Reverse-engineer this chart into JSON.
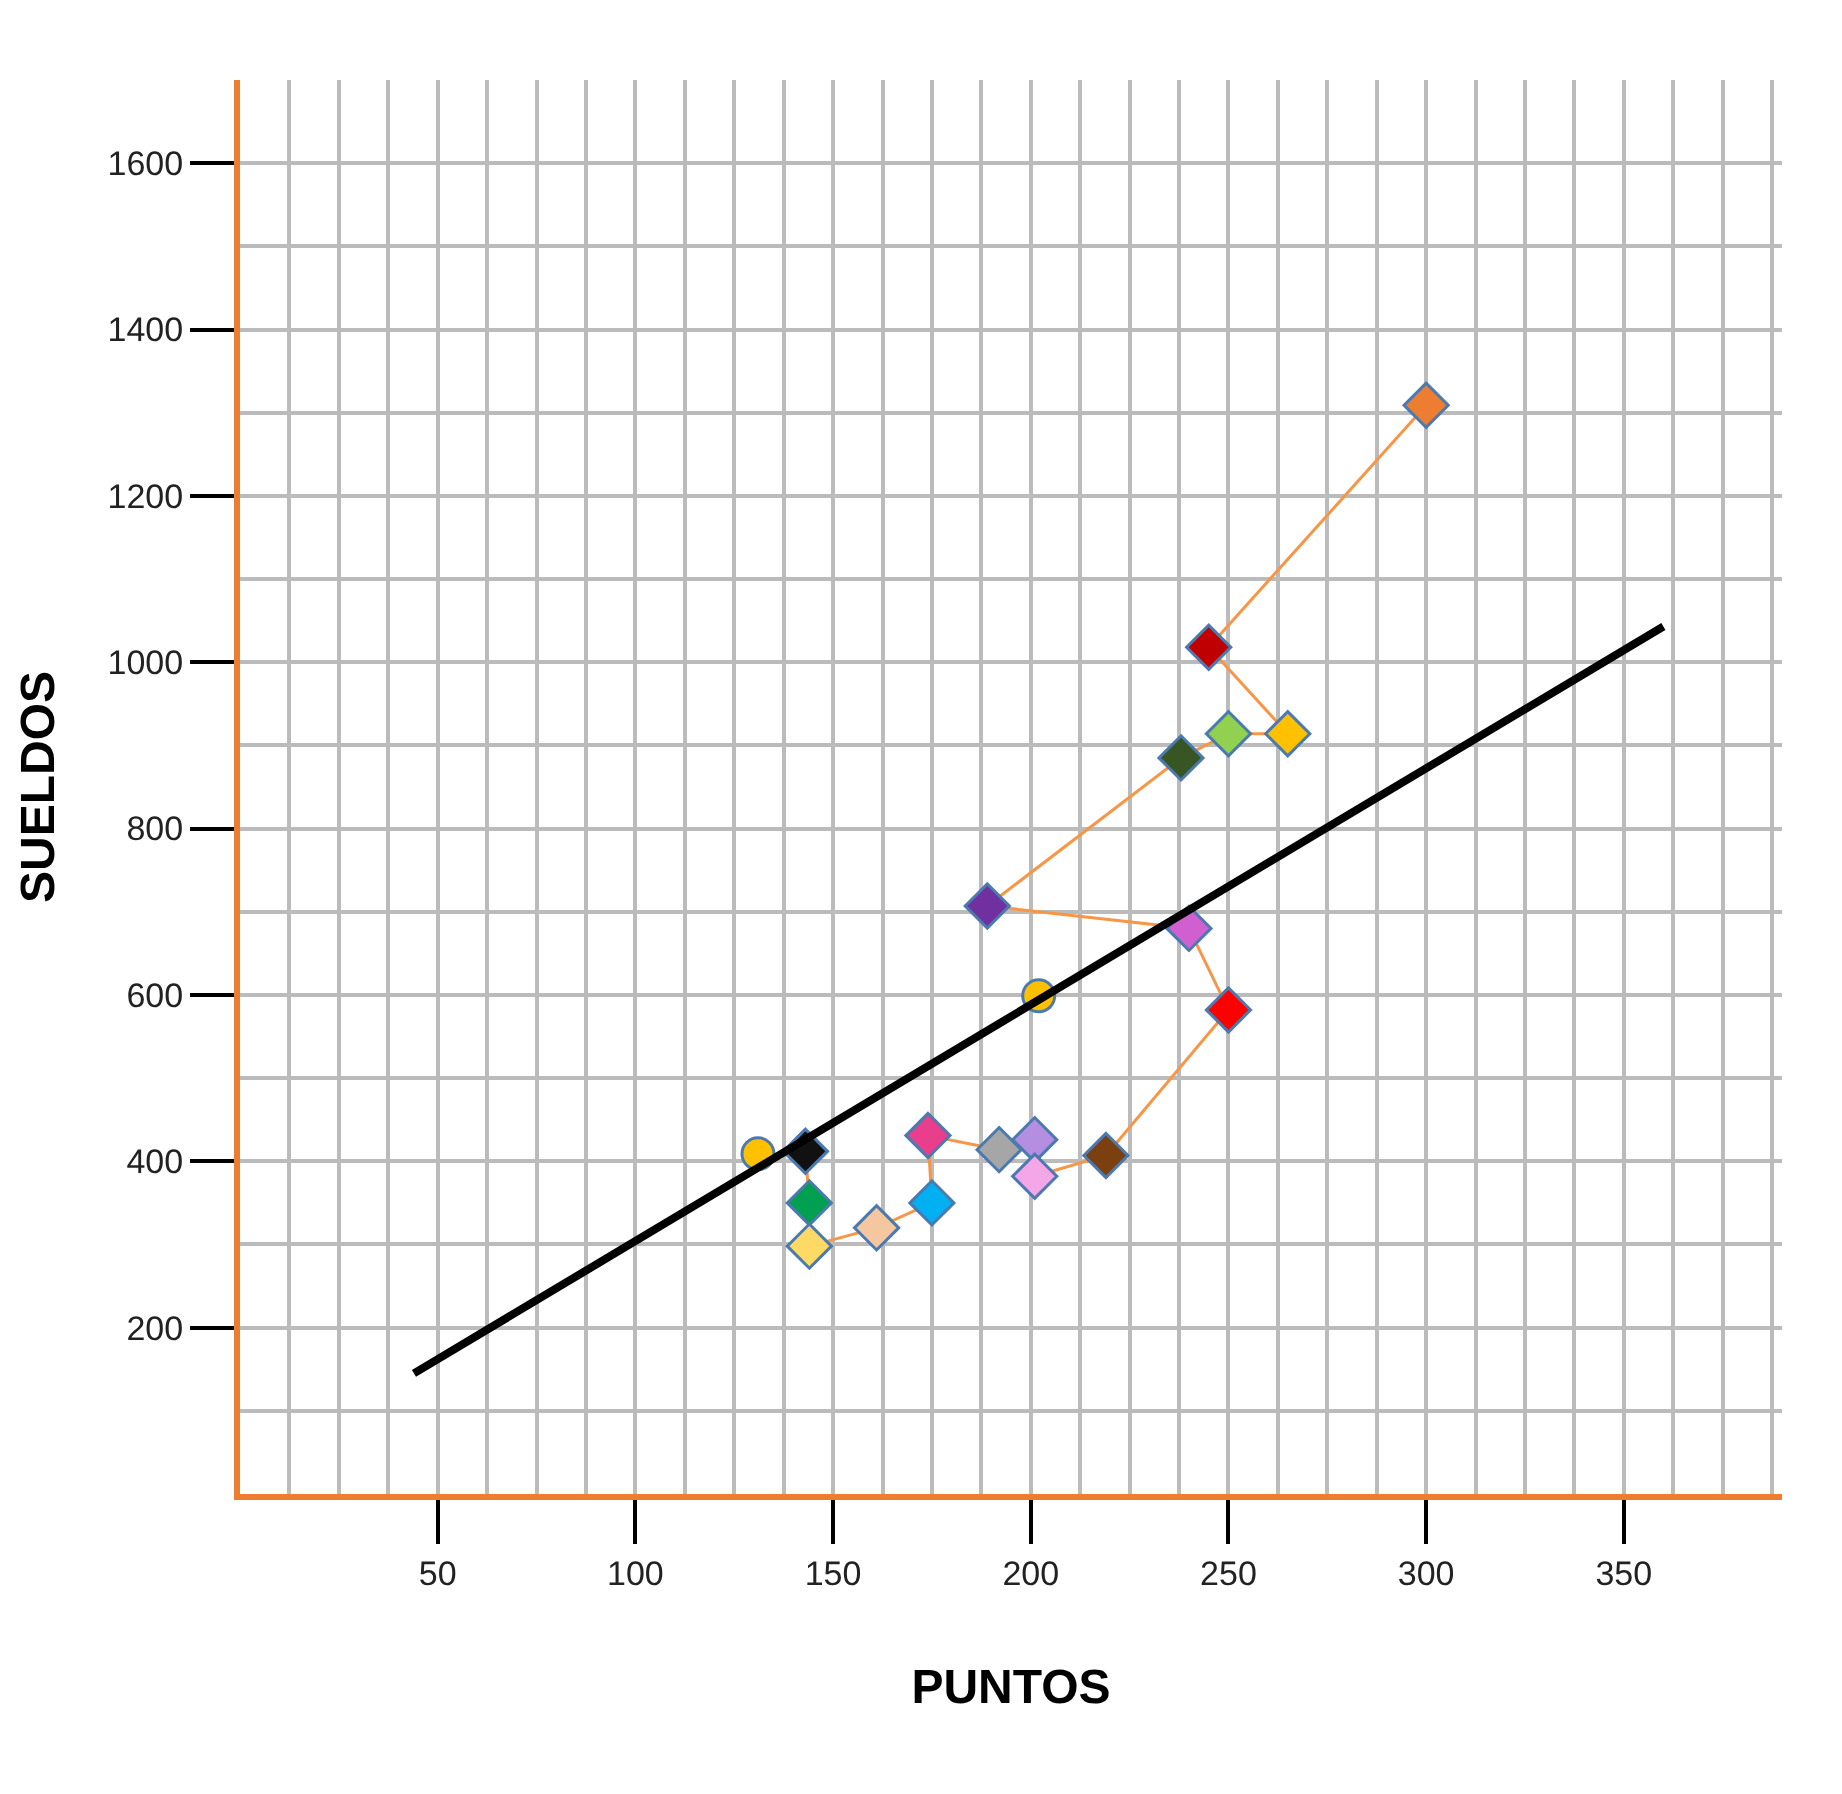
{
  "chart_data": {
    "type": "scatter",
    "xlabel": "PUNTOS",
    "ylabel": "SUELDOS",
    "xlim": [
      0,
      390
    ],
    "ylim": [
      0,
      1700
    ],
    "xticks": [
      50,
      100,
      150,
      200,
      250,
      300,
      350
    ],
    "yticks": [
      200,
      400,
      600,
      800,
      1000,
      1200,
      1400,
      1600
    ],
    "grid": true,
    "series": [
      {
        "type": "line",
        "marker": "diamond",
        "color": "#f79646",
        "colors": [
          "#111111",
          "#00a050",
          "#ffd966",
          "#f4c7a0",
          "#00b0f0",
          "#e83e8c",
          "#a6a6a6",
          "#b48ee0",
          "#f4a6e8",
          "#7b3f10",
          "#ff0000",
          "#d060d0",
          "#7030a0",
          "#375623",
          "#92d050",
          "#ffc000",
          "#c00000",
          "#ed7d31"
        ],
        "x": [
          143,
          144,
          144,
          161,
          175,
          174,
          192,
          201,
          201,
          219,
          250,
          240,
          189,
          238,
          250,
          265,
          245,
          300
        ],
        "values": [
          412,
          350,
          298,
          320,
          350,
          431,
          414,
          426,
          382,
          407,
          582,
          680,
          707,
          885,
          914,
          914,
          1018,
          1309
        ]
      },
      {
        "type": "scatter",
        "marker": "circle",
        "color": "#ffc000",
        "x": [
          131,
          202
        ],
        "values": [
          409,
          599
        ]
      },
      {
        "type": "line",
        "marker": "none",
        "color": "#000000",
        "x": [
          44,
          360
        ],
        "values": [
          145,
          1043
        ]
      }
    ]
  }
}
